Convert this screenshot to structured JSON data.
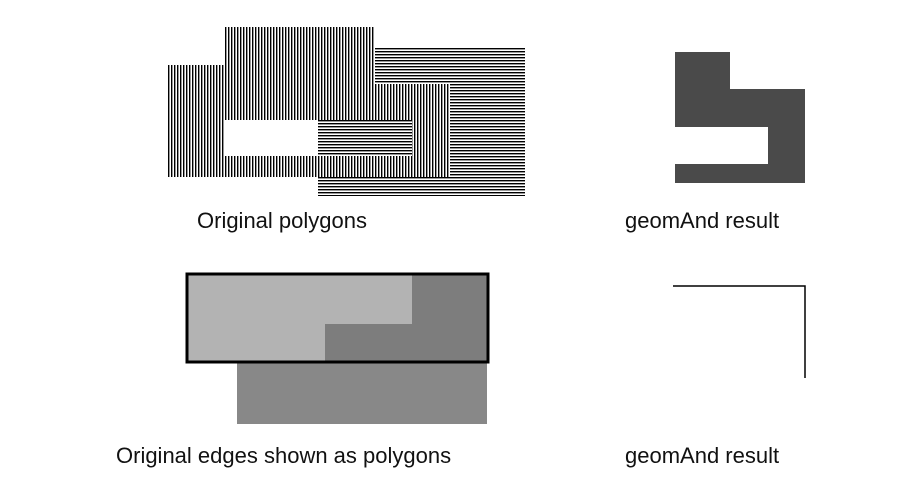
{
  "captions": {
    "original_polygons": "Original polygons",
    "geomand_result_top": "geomAnd result",
    "original_edges": "Original edges shown as polygons",
    "geomand_result_bottom": "geomAnd result"
  },
  "colors": {
    "hatch_line": "#000000",
    "result_fill": "#4a4a4a",
    "light_gray": "#b3b3b3",
    "mid_gray": "#7d7d7d",
    "lower_gray": "#888888"
  }
}
